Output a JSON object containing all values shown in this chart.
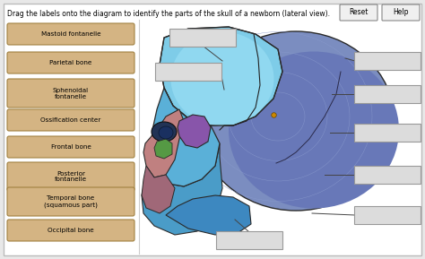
{
  "title": "Drag the labels onto the diagram to identify the parts of the skull of a newborn (lateral view).",
  "bg_outer": "#e8e8e8",
  "bg_panel": "#ffffff",
  "left_labels": [
    "Mastoid fontanelle",
    "Parietal bone",
    "Sphenoidal\nfontanelle",
    "Ossification center",
    "Frontal bone",
    "Posterior\nfontanelle",
    "Temporal bone\n(squamous part)",
    "Occipital bone"
  ],
  "label_fill": "#d4b483",
  "label_edge": "#a08040",
  "box_fill": "#dcdcdc",
  "box_edge": "#999999",
  "reset_fill": "#eeeeee",
  "reset_edge": "#999999",
  "line_color": "#444444",
  "title_fontsize": 5.5,
  "label_fontsize": 5.2
}
